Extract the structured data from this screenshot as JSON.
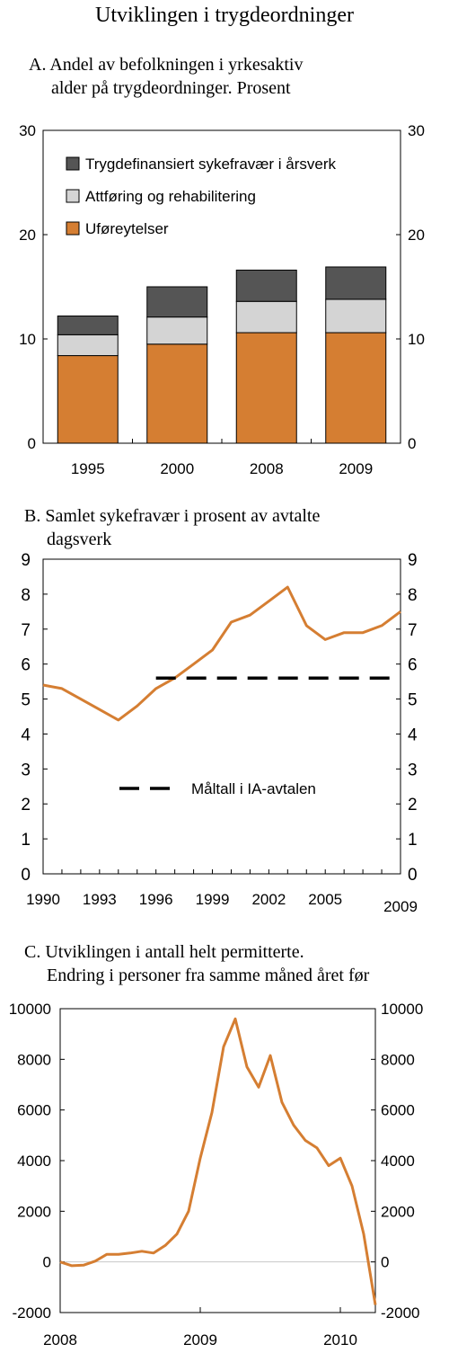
{
  "page_title": "Utviklingen i trygdeordninger",
  "chart_data": [
    {
      "id": "A",
      "type": "bar",
      "stacked": true,
      "title_lines": [
        "A. Andel av befolkningen i yrkesaktiv",
        "alder på trygdeordninger. Prosent"
      ],
      "categories": [
        "1995",
        "2000",
        "2008",
        "2009"
      ],
      "series": [
        {
          "name": "Uføreytelser",
          "color": "#D57E32",
          "values": [
            8.4,
            9.5,
            10.6,
            10.6
          ]
        },
        {
          "name": "Attføring og rehabilitering",
          "color": "#D4D4D4",
          "values": [
            2.0,
            2.6,
            3.0,
            3.2
          ]
        },
        {
          "name": "Trygdefinansiert sykefravær i årsverk",
          "color": "#555555",
          "values": [
            1.8,
            2.9,
            3.0,
            3.1
          ]
        }
      ],
      "ylim": [
        0,
        30
      ],
      "yticks": [
        0,
        10,
        20,
        30
      ],
      "legend_position": "top-left",
      "grid": false
    },
    {
      "id": "B",
      "type": "line",
      "title_lines": [
        "B. Samlet sykefravær i prosent av avtalte",
        "dagsverk"
      ],
      "x": [
        1990,
        1991,
        1992,
        1993,
        1994,
        1995,
        1996,
        1997,
        1998,
        1999,
        2000,
        2001,
        2002,
        2003,
        2004,
        2005,
        2006,
        2007,
        2008,
        2009
      ],
      "series": [
        {
          "name": "",
          "color": "#D57E32",
          "values": [
            5.4,
            5.3,
            5.0,
            4.7,
            4.4,
            4.8,
            5.3,
            5.6,
            6.0,
            6.4,
            7.2,
            7.4,
            7.8,
            8.2,
            7.1,
            6.7,
            6.9,
            6.9,
            7.1,
            7.5
          ]
        },
        {
          "name": "Måltall i IA-avtalen",
          "color": "#000000",
          "dashed": true,
          "x": [
            1996,
            2009
          ],
          "values": [
            5.6,
            5.6
          ]
        }
      ],
      "xticks": [
        "1990",
        "1993",
        "1996",
        "1999",
        "2002",
        "2005",
        "2009"
      ],
      "xtick_values": [
        1990,
        1993,
        1996,
        1999,
        2002,
        2005,
        2009
      ],
      "xlim": [
        1990,
        2009
      ],
      "ylim": [
        0,
        9
      ],
      "yticks": [
        0,
        1,
        2,
        3,
        4,
        5,
        6,
        7,
        8,
        9
      ],
      "legend_position": "bottom-center",
      "grid": false
    },
    {
      "id": "C",
      "type": "line",
      "title_lines": [
        "C. Utviklingen i antall helt permitterte.",
        "Endring i personer fra samme måned året før"
      ],
      "x": [
        0,
        1,
        2,
        3,
        4,
        5,
        6,
        7,
        8,
        9,
        10,
        11,
        12,
        13,
        14,
        15,
        16,
        17,
        18,
        19,
        20,
        21,
        22,
        23,
        24,
        25,
        26,
        27
      ],
      "series": [
        {
          "name": "",
          "color": "#D57E32",
          "values": [
            0,
            -150,
            -130,
            30,
            300,
            300,
            350,
            420,
            350,
            650,
            1100,
            2000,
            4100,
            5900,
            8500,
            9600,
            7700,
            6900,
            8150,
            6300,
            5400,
            4800,
            4500,
            3800,
            4100,
            3000,
            1100,
            -1700
          ]
        }
      ],
      "xticks": [
        "2008",
        "2009",
        "2010"
      ],
      "xtick_values": [
        0,
        12,
        24
      ],
      "xlim": [
        0,
        27
      ],
      "ylim": [
        -2000,
        10000
      ],
      "yticks": [
        -2000,
        0,
        2000,
        4000,
        6000,
        8000,
        10000
      ],
      "zero_line": true,
      "grid": false
    }
  ]
}
